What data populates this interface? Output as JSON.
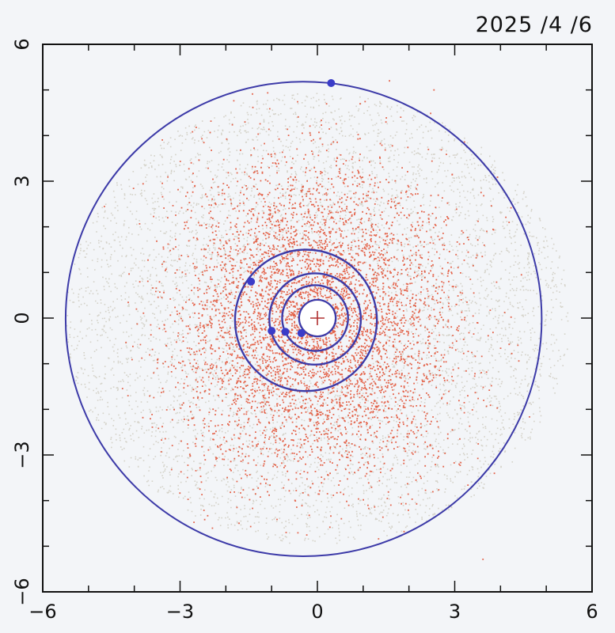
{
  "date_label": "2025 /4 /6",
  "colors": {
    "background": "#f3f5f8",
    "axis": "#111111",
    "orbit": "#3c3aa8",
    "planet": "#3a3cc8",
    "asteroid_inner": "#e0401f",
    "asteroid_outer": "#c9c6b8",
    "sun": "#ffffff"
  },
  "chart_data": {
    "type": "scatter",
    "title": "",
    "xlabel": "",
    "ylabel": "",
    "xlim": [
      -6,
      6
    ],
    "ylim": [
      -6,
      6
    ],
    "x_ticks": [
      -6,
      -3,
      0,
      3,
      6
    ],
    "y_ticks": [
      -6,
      -3,
      0,
      3,
      6
    ],
    "x_tick_labels": [
      "−6",
      "−3",
      "0",
      "3",
      "6"
    ],
    "y_tick_labels": [
      "−6",
      "−3",
      "0",
      "3",
      "6"
    ],
    "grid": false,
    "sun": {
      "x": 0,
      "y": 0,
      "marker": "plus"
    },
    "orbits": [
      {
        "cx": 0,
        "cy": 0,
        "r": 0.4
      },
      {
        "cx": -0.05,
        "cy": 0,
        "r": 0.72
      },
      {
        "cx": -0.05,
        "cy": -0.02,
        "r": 1.0
      },
      {
        "cx": -0.25,
        "cy": -0.05,
        "r": 1.55
      },
      {
        "cx": -0.3,
        "cy": -0.02,
        "r": 5.2
      }
    ],
    "planets": [
      {
        "x": -0.35,
        "y": -0.33
      },
      {
        "x": -0.7,
        "y": -0.3
      },
      {
        "x": -1.0,
        "y": -0.28
      },
      {
        "x": -1.45,
        "y": 0.8
      },
      {
        "x": 0.3,
        "y": 5.15
      }
    ],
    "asteroid_density": {
      "inner_band_radius": 3.0,
      "outer_halo_radius": 5.5,
      "point_count_inner": 9000,
      "point_count_outer": 5000
    }
  }
}
